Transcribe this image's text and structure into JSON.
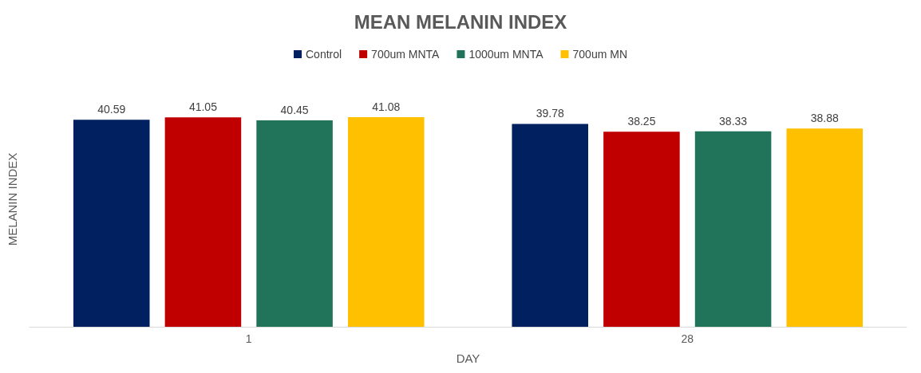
{
  "chart_data": {
    "type": "bar",
    "title": "MEAN MELANIN INDEX",
    "xlabel": "DAY",
    "ylabel": "MELANIN INDEX",
    "categories": [
      "1",
      "28"
    ],
    "series": [
      {
        "name": "Control",
        "color": "#002060",
        "values": [
          40.59,
          39.78
        ]
      },
      {
        "name": "700um MNTA",
        "color": "#c00000",
        "values": [
          41.05,
          38.25
        ]
      },
      {
        "name": "1000um MNTA",
        "color": "#217359",
        "values": [
          40.45,
          38.33
        ]
      },
      {
        "name": "700um MN",
        "color": "#ffc000",
        "values": [
          41.08,
          38.88
        ]
      }
    ],
    "data_labels": true,
    "legend": "top",
    "grid": false,
    "tick_labels": "x"
  }
}
